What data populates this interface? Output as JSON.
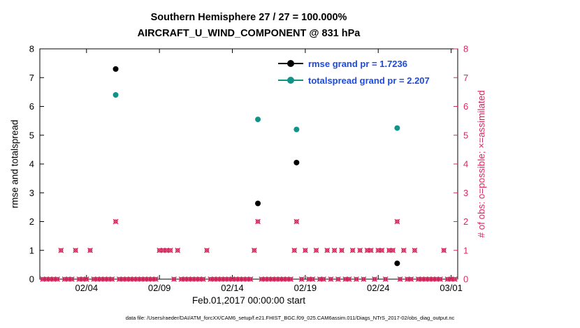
{
  "colors": {
    "obs": "#d62a5f",
    "rmse": "#000000",
    "totalspread": "#11938a",
    "legend_text": "#1b4ae0",
    "axis": "#000000"
  },
  "caption": "data file: /Users/raeder/DAI/ATM_forcXX/CAM6_setup/f.e21.FHIST_BGC.f09_025.CAM6assim.011/Diags_NTrS_2017-02/obs_diag_output.nc",
  "chart_data": {
    "type": "scatter",
    "title_line1": "Southern Hemisphere 27 / 27 = 100.000%",
    "title_line2": "AIRCRAFT_U_WIND_COMPONENT @ 831 hPa",
    "xlabel": "Feb.01,2017 00:00:00 start",
    "ylabel_left": "rmse and totalspread",
    "ylabel_right": "# of obs: o=possible; ×=assimilated",
    "xlim_days": [
      -0.2,
      28.45
    ],
    "ylim": [
      0,
      8
    ],
    "grid": false,
    "legend_position": "top-right-inside",
    "y_ticks": [
      0,
      1,
      2,
      3,
      4,
      5,
      6,
      7,
      8
    ],
    "x_ticks": [
      {
        "day": 3,
        "label": "02/04"
      },
      {
        "day": 8,
        "label": "02/09"
      },
      {
        "day": 13,
        "label": "02/14"
      },
      {
        "day": 18,
        "label": "02/19"
      },
      {
        "day": 23,
        "label": "02/24"
      },
      {
        "day": 28,
        "label": "03/01"
      }
    ],
    "series": [
      {
        "name": "rmse",
        "legend": "rmse grand pr = 1.7236",
        "grand_pr": 1.7236,
        "color_key": "rmse",
        "x_days": [
          5.0,
          14.75,
          17.4,
          24.3
        ],
        "values": [
          7.3,
          2.63,
          4.05,
          0.55
        ]
      },
      {
        "name": "totalspread",
        "legend": "totalspread grand pr = 2.207",
        "grand_pr": 2.207,
        "color_key": "totalspread",
        "x_days": [
          5.0,
          14.75,
          17.4,
          24.3
        ],
        "values": [
          6.4,
          5.55,
          5.2,
          5.25
        ]
      }
    ],
    "obs_counts": {
      "marker": "circle-and-x",
      "color_key": "obs",
      "zero_run": {
        "start_day": 0,
        "end_day": 28.25,
        "step_days": 0.25,
        "value": 0
      },
      "ones_days": [
        1.25,
        2.25,
        3.25,
        8.0,
        8.25,
        8.5,
        8.75,
        9.25,
        11.25,
        14.5,
        17.25,
        18.0,
        18.75,
        19.5,
        20.0,
        20.5,
        21.25,
        21.75,
        22.25,
        22.5,
        23.0,
        23.25,
        23.75,
        24.0,
        24.75,
        25.5,
        27.5
      ],
      "twos_days": [
        5.0,
        14.75,
        17.4,
        24.3
      ]
    }
  }
}
